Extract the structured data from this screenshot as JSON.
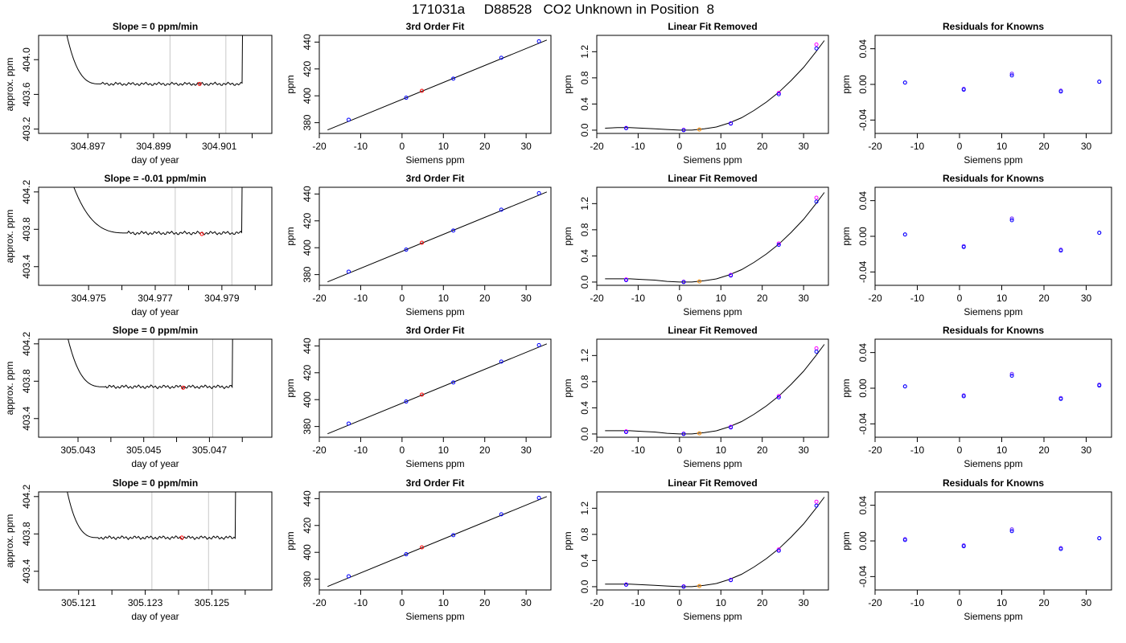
{
  "page_title": "171031a     D88528   CO2 Unknown in Position  8",
  "colors": {
    "line": "#000000",
    "gray": "#c8c8c8",
    "red": "#ff0000",
    "blue": "#0000ff",
    "magenta": "#ff00ff",
    "orange": "#ff8c00",
    "violet": "#7b2fff"
  },
  "chart_data": [
    {
      "panel": "slope",
      "row": 0,
      "type": "line",
      "title": "Slope =  0  ppm/min",
      "xlabel": "day of year",
      "ylabel": "approx. ppm",
      "xlim": [
        304.8955,
        304.9026
      ],
      "xticks": [
        304.897,
        304.899,
        304.901
      ],
      "extra_x_ticks": [
        304.898,
        304.9,
        304.902
      ],
      "xtick_labels": [
        "304.897",
        "304.899",
        "304.901"
      ],
      "ylim": [
        403.15,
        404.28
      ],
      "yticks": [
        403.2,
        403.6,
        404.0
      ],
      "ytick_labels": [
        "403.2",
        "403.6",
        "404.0"
      ],
      "baseline": 403.72,
      "run_start": 304.8961,
      "run_end": 304.9018,
      "plateau_start": 304.8974,
      "plateau_end": 304.9017,
      "avg_window": [
        304.8995,
        304.9012
      ],
      "avg_point": {
        "x": 304.9004,
        "y": 403.72
      }
    },
    {
      "panel": "slope",
      "row": 1,
      "type": "line",
      "title": "Slope =  -0.01  ppm/min",
      "xlabel": "day of year",
      "ylabel": "approx. ppm",
      "xlim": [
        304.9735,
        304.9805
      ],
      "xticks": [
        304.975,
        304.977,
        304.979
      ],
      "extra_x_ticks": [
        304.976,
        304.978,
        304.98
      ],
      "xtick_labels": [
        "304.975",
        "304.977",
        "304.979"
      ],
      "ylim": [
        403.2,
        404.25
      ],
      "yticks": [
        403.4,
        403.8,
        404.2
      ],
      "ytick_labels": [
        "403.4",
        "403.8",
        "404.2"
      ],
      "baseline": 403.76,
      "run_start": 304.9741,
      "run_end": 304.9797,
      "plateau_start": 304.9762,
      "plateau_end": 304.9796,
      "avg_window": [
        304.9776,
        304.9793
      ],
      "avg_point": {
        "x": 304.9784,
        "y": 403.75
      }
    },
    {
      "panel": "slope",
      "row": 2,
      "type": "line",
      "title": "Slope =  0  ppm/min",
      "xlabel": "day of year",
      "ylabel": "approx. ppm",
      "xlim": [
        305.0418,
        305.0489
      ],
      "xticks": [
        305.043,
        305.045,
        305.047
      ],
      "extra_x_ticks": [
        305.044,
        305.046,
        305.048
      ],
      "xtick_labels": [
        "305.043",
        "305.045",
        "305.047"
      ],
      "ylim": [
        403.2,
        404.25
      ],
      "yticks": [
        403.4,
        403.8,
        404.2
      ],
      "ytick_labels": [
        "403.4",
        "403.8",
        "404.2"
      ],
      "baseline": 403.74,
      "run_start": 305.0424,
      "run_end": 305.0479,
      "plateau_start": 305.0438,
      "plateau_end": 305.0477,
      "avg_window": [
        305.0453,
        305.0471
      ],
      "avg_point": {
        "x": 305.0462,
        "y": 403.73
      }
    },
    {
      "panel": "slope",
      "row": 3,
      "type": "line",
      "title": "Slope =  0  ppm/min",
      "xlabel": "day of year",
      "ylabel": "approx. ppm",
      "xlim": [
        305.1198,
        305.1268
      ],
      "xticks": [
        305.121,
        305.123,
        305.125
      ],
      "extra_x_ticks": [
        305.122,
        305.124,
        305.126
      ],
      "xtick_labels": [
        "305.121",
        "305.123",
        "305.125"
      ],
      "ylim": [
        403.2,
        404.25
      ],
      "yticks": [
        403.4,
        403.8,
        404.2
      ],
      "ytick_labels": [
        "403.4",
        "403.8",
        "404.2"
      ],
      "baseline": 403.76,
      "run_start": 305.1204,
      "run_end": 305.1258,
      "plateau_start": 305.1216,
      "plateau_end": 305.1257,
      "avg_window": [
        305.1232,
        305.1249
      ],
      "avg_point": {
        "x": 305.1241,
        "y": 403.76
      }
    },
    {
      "panel": "fit",
      "type": "line+scatter",
      "title": "3rd Order Fit",
      "xlabel": "Siemens ppm",
      "ylabel": "ppm",
      "xlim": [
        -20,
        36
      ],
      "xticks": [
        -20,
        -10,
        0,
        10,
        20,
        30
      ],
      "ylim": [
        372,
        445
      ],
      "yticks": [
        380,
        400,
        420,
        440
      ],
      "curve_x": [
        -18,
        35
      ],
      "curve_y": [
        374.6,
        441.5
      ],
      "knowns": {
        "x": [
          -12.9,
          1.0,
          12.4,
          24.0,
          33.1
        ],
        "y": [
          382.2,
          398.6,
          412.8,
          428.3,
          440.6
        ]
      },
      "unknown": {
        "x": 4.8,
        "y": 403.7
      }
    },
    {
      "panel": "fit",
      "type": "line+scatter",
      "title": "3rd Order Fit",
      "xlabel": "Siemens ppm",
      "ylabel": "ppm",
      "xlim": [
        -20,
        36
      ],
      "xticks": [
        -20,
        -10,
        0,
        10,
        20,
        30
      ],
      "ylim": [
        372,
        445
      ],
      "yticks": [
        380,
        400,
        420,
        440
      ],
      "curve_x": [
        -18,
        35
      ],
      "curve_y": [
        374.6,
        441.5
      ],
      "knowns": {
        "x": [
          -12.9,
          1.0,
          12.4,
          24.0,
          33.1
        ],
        "y": [
          382.2,
          398.6,
          412.8,
          428.3,
          440.6
        ]
      },
      "unknown": {
        "x": 4.8,
        "y": 403.7
      }
    },
    {
      "panel": "fit",
      "type": "line+scatter",
      "title": "3rd Order Fit",
      "xlabel": "Siemens ppm",
      "ylabel": "ppm",
      "xlim": [
        -20,
        36
      ],
      "xticks": [
        -20,
        -10,
        0,
        10,
        20,
        30
      ],
      "ylim": [
        372,
        445
      ],
      "yticks": [
        380,
        400,
        420,
        440
      ],
      "curve_x": [
        -18,
        35
      ],
      "curve_y": [
        374.6,
        441.5
      ],
      "knowns": {
        "x": [
          -12.9,
          1.0,
          12.4,
          24.0,
          33.1
        ],
        "y": [
          382.2,
          398.6,
          412.8,
          428.3,
          440.6
        ]
      },
      "unknown": {
        "x": 4.8,
        "y": 403.7
      }
    },
    {
      "panel": "fit",
      "type": "line+scatter",
      "title": "3rd Order Fit",
      "xlabel": "Siemens ppm",
      "ylabel": "ppm",
      "xlim": [
        -20,
        36
      ],
      "xticks": [
        -20,
        -10,
        0,
        10,
        20,
        30
      ],
      "ylim": [
        372,
        445
      ],
      "yticks": [
        380,
        400,
        420,
        440
      ],
      "curve_x": [
        -18,
        35
      ],
      "curve_y": [
        374.6,
        441.5
      ],
      "knowns": {
        "x": [
          -12.9,
          1.0,
          12.4,
          24.0,
          33.1
        ],
        "y": [
          382.2,
          398.6,
          412.8,
          428.3,
          440.6
        ]
      },
      "unknown": {
        "x": 4.8,
        "y": 403.7
      }
    },
    {
      "panel": "linrem",
      "type": "line+scatter",
      "title": "Linear Fit Removed",
      "xlabel": "Siemens ppm",
      "ylabel": "ppm",
      "xlim": [
        -20,
        36
      ],
      "xticks": [
        -20,
        -10,
        0,
        10,
        20,
        30
      ],
      "ylim": [
        -0.05,
        1.45
      ],
      "yticks": [
        0.0,
        0.4,
        0.8,
        1.2
      ],
      "ytick_labels": [
        "0.0",
        "0.4",
        "0.8",
        "1.2"
      ],
      "curve_x": [
        -18,
        -15,
        -12,
        -9,
        -6,
        -3,
        0,
        3,
        6,
        9,
        12,
        15,
        18,
        21,
        24,
        27,
        30,
        33,
        35
      ],
      "curve_y": [
        0.03,
        0.04,
        0.04,
        0.03,
        0.02,
        0.01,
        0.0,
        0.0,
        0.02,
        0.05,
        0.11,
        0.19,
        0.3,
        0.43,
        0.58,
        0.76,
        0.96,
        1.2,
        1.37
      ],
      "knowns_blue": {
        "x": [
          -12.9,
          1.0,
          12.4,
          24.0,
          33.1
        ],
        "y": [
          0.03,
          0.0,
          0.1,
          0.55,
          1.25
        ]
      },
      "knowns_magenta": {
        "x": [
          -12.9,
          1.0,
          12.4,
          24.0,
          33.1
        ],
        "y": [
          0.035,
          0.005,
          0.105,
          0.57,
          1.31
        ]
      },
      "unknown": {
        "x": 4.8,
        "y": 0.01
      }
    },
    {
      "panel": "linrem",
      "type": "line+scatter",
      "title": "Linear Fit Removed",
      "xlabel": "Siemens ppm",
      "ylabel": "ppm",
      "xlim": [
        -20,
        36
      ],
      "xticks": [
        -20,
        -10,
        0,
        10,
        20,
        30
      ],
      "ylim": [
        -0.05,
        1.45
      ],
      "yticks": [
        0.0,
        0.4,
        0.8,
        1.2
      ],
      "ytick_labels": [
        "0.0",
        "0.4",
        "0.8",
        "1.2"
      ],
      "curve_x": [
        -18,
        -15,
        -12,
        -9,
        -6,
        -3,
        0,
        3,
        6,
        9,
        12,
        15,
        18,
        21,
        24,
        27,
        30,
        33,
        35
      ],
      "curve_y": [
        0.05,
        0.05,
        0.05,
        0.04,
        0.03,
        0.01,
        0.0,
        0.0,
        0.02,
        0.05,
        0.11,
        0.19,
        0.3,
        0.43,
        0.58,
        0.76,
        0.96,
        1.2,
        1.37
      ],
      "knowns_blue": {
        "x": [
          -12.9,
          1.0,
          12.4,
          24.0,
          33.1
        ],
        "y": [
          0.03,
          0.0,
          0.1,
          0.57,
          1.23
        ]
      },
      "knowns_magenta": {
        "x": [
          -12.9,
          1.0,
          12.4,
          24.0,
          33.1
        ],
        "y": [
          0.04,
          0.005,
          0.11,
          0.59,
          1.29
        ]
      },
      "unknown": {
        "x": 4.8,
        "y": 0.01
      }
    },
    {
      "panel": "linrem",
      "type": "line+scatter",
      "title": "Linear Fit Removed",
      "xlabel": "Siemens ppm",
      "ylabel": "ppm",
      "xlim": [
        -20,
        36
      ],
      "xticks": [
        -20,
        -10,
        0,
        10,
        20,
        30
      ],
      "ylim": [
        -0.05,
        1.45
      ],
      "yticks": [
        0.0,
        0.4,
        0.8,
        1.2
      ],
      "ytick_labels": [
        "0.0",
        "0.4",
        "0.8",
        "1.2"
      ],
      "curve_x": [
        -18,
        -15,
        -12,
        -9,
        -6,
        -3,
        0,
        3,
        6,
        9,
        12,
        15,
        18,
        21,
        24,
        27,
        30,
        33,
        35
      ],
      "curve_y": [
        0.05,
        0.05,
        0.05,
        0.04,
        0.03,
        0.01,
        0.0,
        0.0,
        0.02,
        0.05,
        0.11,
        0.19,
        0.3,
        0.43,
        0.58,
        0.76,
        0.96,
        1.2,
        1.37
      ],
      "knowns_blue": {
        "x": [
          -12.9,
          1.0,
          12.4,
          24.0,
          33.1
        ],
        "y": [
          0.03,
          0.0,
          0.1,
          0.56,
          1.26
        ]
      },
      "knowns_magenta": {
        "x": [
          -12.9,
          1.0,
          12.4,
          24.0,
          33.1
        ],
        "y": [
          0.04,
          0.005,
          0.11,
          0.58,
          1.31
        ]
      },
      "unknown": {
        "x": 4.8,
        "y": 0.01
      }
    },
    {
      "panel": "linrem",
      "type": "line+scatter",
      "title": "Linear Fit Removed",
      "xlabel": "Siemens ppm",
      "ylabel": "ppm",
      "xlim": [
        -20,
        36
      ],
      "xticks": [
        -20,
        -10,
        0,
        10,
        20,
        30
      ],
      "ylim": [
        -0.05,
        1.45
      ],
      "yticks": [
        0.0,
        0.4,
        0.8,
        1.2
      ],
      "ytick_labels": [
        "0.0",
        "0.4",
        "0.8",
        "1.2"
      ],
      "curve_x": [
        -18,
        -15,
        -12,
        -9,
        -6,
        -3,
        0,
        3,
        6,
        9,
        12,
        15,
        18,
        21,
        24,
        27,
        30,
        33,
        35
      ],
      "curve_y": [
        0.04,
        0.04,
        0.04,
        0.03,
        0.02,
        0.01,
        0.0,
        0.0,
        0.02,
        0.05,
        0.11,
        0.19,
        0.3,
        0.43,
        0.58,
        0.76,
        0.96,
        1.2,
        1.37
      ],
      "knowns_blue": {
        "x": [
          -12.9,
          1.0,
          12.4,
          24.0,
          33.1
        ],
        "y": [
          0.03,
          0.0,
          0.1,
          0.55,
          1.24
        ]
      },
      "knowns_magenta": {
        "x": [
          -12.9,
          1.0,
          12.4,
          24.0,
          33.1
        ],
        "y": [
          0.035,
          0.005,
          0.105,
          0.57,
          1.3
        ]
      },
      "unknown": {
        "x": 4.8,
        "y": 0.01
      }
    },
    {
      "panel": "resid",
      "type": "scatter",
      "title": "Residuals for Knowns",
      "xlabel": "Siemens ppm",
      "ylabel": "ppm",
      "xlim": [
        -20,
        36
      ],
      "xticks": [
        -20,
        -10,
        0,
        10,
        20,
        30
      ],
      "ylim": [
        -0.055,
        0.055
      ],
      "yticks": [
        -0.04,
        0.0,
        0.04
      ],
      "ytick_labels": [
        "-0.04",
        "0.00",
        "0.04"
      ],
      "blue": {
        "x": [
          -12.9,
          1.0,
          12.4,
          24.0,
          33.1
        ],
        "y": [
          0.002,
          -0.006,
          0.01,
          -0.008,
          0.003
        ]
      },
      "violet": {
        "x": [
          -12.9,
          1.0,
          12.4,
          24.0,
          33.1
        ],
        "y": [
          0.002,
          -0.005,
          0.012,
          -0.007,
          0.003
        ]
      }
    },
    {
      "panel": "resid",
      "type": "scatter",
      "title": "Residuals for Knowns",
      "xlabel": "Siemens ppm",
      "ylabel": "ppm",
      "xlim": [
        -20,
        36
      ],
      "xticks": [
        -20,
        -10,
        0,
        10,
        20,
        30
      ],
      "ylim": [
        -0.055,
        0.055
      ],
      "yticks": [
        -0.04,
        0.0,
        0.04
      ],
      "ytick_labels": [
        "-0.04",
        "0.00",
        "0.04"
      ],
      "blue": {
        "x": [
          -12.9,
          1.0,
          12.4,
          24.0,
          33.1
        ],
        "y": [
          0.002,
          -0.012,
          0.018,
          -0.016,
          0.004
        ]
      },
      "violet": {
        "x": [
          -12.9,
          1.0,
          12.4,
          24.0,
          33.1
        ],
        "y": [
          0.002,
          -0.011,
          0.02,
          -0.015,
          0.004
        ]
      }
    },
    {
      "panel": "resid",
      "type": "scatter",
      "title": "Residuals for Knowns",
      "xlabel": "Siemens ppm",
      "ylabel": "ppm",
      "xlim": [
        -20,
        36
      ],
      "xticks": [
        -20,
        -10,
        0,
        10,
        20,
        30
      ],
      "ylim": [
        -0.055,
        0.055
      ],
      "yticks": [
        -0.04,
        0.0,
        0.04
      ],
      "ytick_labels": [
        "-0.04",
        "0.00",
        "0.04"
      ],
      "blue": {
        "x": [
          -12.9,
          1.0,
          12.4,
          24.0,
          33.1
        ],
        "y": [
          0.002,
          -0.009,
          0.014,
          -0.012,
          0.003
        ]
      },
      "violet": {
        "x": [
          -12.9,
          1.0,
          12.4,
          24.0,
          33.1
        ],
        "y": [
          0.002,
          -0.008,
          0.016,
          -0.011,
          0.004
        ]
      }
    },
    {
      "panel": "resid",
      "type": "scatter",
      "title": "Residuals for Knowns",
      "xlabel": "Siemens ppm",
      "ylabel": "ppm",
      "xlim": [
        -20,
        36
      ],
      "xticks": [
        -20,
        -10,
        0,
        10,
        20,
        30
      ],
      "ylim": [
        -0.055,
        0.055
      ],
      "yticks": [
        -0.04,
        0.0,
        0.04
      ],
      "ytick_labels": [
        "-0.04",
        "0.00",
        "0.04"
      ],
      "blue": {
        "x": [
          -12.9,
          1.0,
          12.4,
          24.0,
          33.1
        ],
        "y": [
          0.001,
          -0.006,
          0.011,
          -0.009,
          0.003
        ]
      },
      "violet": {
        "x": [
          -12.9,
          1.0,
          12.4,
          24.0,
          33.1
        ],
        "y": [
          0.002,
          -0.005,
          0.013,
          -0.008,
          0.003
        ]
      }
    }
  ]
}
